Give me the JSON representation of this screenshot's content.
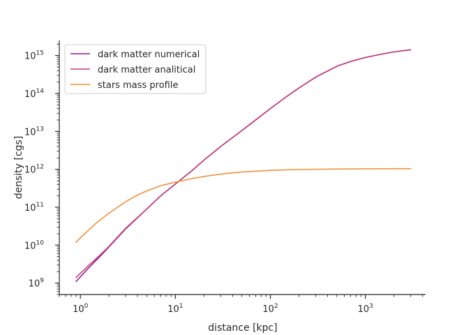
{
  "chart_data": {
    "type": "line",
    "xlabel": "distance [kpc]",
    "ylabel": "density [cgs]",
    "xscale": "log",
    "yscale": "log",
    "xlim": [
      0.6,
      4300
    ],
    "ylim": [
      500000000.0,
      2500000000000000.0
    ],
    "x_ticks": [
      {
        "value": 1,
        "label": "10",
        "exp": "0"
      },
      {
        "value": 10,
        "label": "10",
        "exp": "1"
      },
      {
        "value": 100,
        "label": "10",
        "exp": "2"
      },
      {
        "value": 1000,
        "label": "10",
        "exp": "3"
      }
    ],
    "y_ticks": [
      {
        "value": 1000000000.0,
        "label": "10",
        "exp": "9"
      },
      {
        "value": 10000000000.0,
        "label": "10",
        "exp": "10"
      },
      {
        "value": 100000000000.0,
        "label": "10",
        "exp": "11"
      },
      {
        "value": 1000000000000.0,
        "label": "10",
        "exp": "12"
      },
      {
        "value": 10000000000000.0,
        "label": "10",
        "exp": "13"
      },
      {
        "value": 100000000000000.0,
        "label": "10",
        "exp": "14"
      },
      {
        "value": 1000000000000000.0,
        "label": "10",
        "exp": "15"
      }
    ],
    "grid": false,
    "legend_position": "top-left",
    "series": [
      {
        "name": "dark matter numerical",
        "color": "#8e1a93",
        "x": [
          0.9,
          1.2,
          1.6,
          2,
          3,
          5,
          7,
          10,
          15,
          20,
          30,
          50,
          70,
          100,
          150,
          200,
          300,
          500,
          700,
          1000,
          1500,
          2000,
          3000
        ],
        "y": [
          1100000000.0,
          2400000000.0,
          5000000000.0,
          9000000000.0,
          27000000000.0,
          90000000000.0,
          200000000000.0,
          410000000000.0,
          930000000000.0,
          1750000000000.0,
          4000000000000.0,
          10500000000000.0,
          20000000000000.0,
          40000000000000.0,
          85000000000000.0,
          140000000000000.0,
          270000000000000.0,
          520000000000000.0,
          700000000000000.0,
          890000000000000.0,
          1100000000000000.0,
          1250000000000000.0,
          1420000000000000.0
        ]
      },
      {
        "name": "dark matter analitical",
        "color": "#c23b79",
        "x": [
          0.9,
          1.2,
          1.6,
          2,
          3,
          5,
          7,
          10,
          15,
          20,
          30,
          50,
          70,
          100,
          150,
          200,
          300,
          500,
          700,
          1000,
          1500,
          2000,
          3000
        ],
        "y": [
          1400000000.0,
          2800000000.0,
          5400000000.0,
          9300000000.0,
          28000000000.0,
          90000000000.0,
          200000000000.0,
          410000000000.0,
          930000000000.0,
          1750000000000.0,
          4000000000000.0,
          10500000000000.0,
          20000000000000.0,
          40000000000000.0,
          85000000000000.0,
          140000000000000.0,
          270000000000000.0,
          520000000000000.0,
          700000000000000.0,
          890000000000000.0,
          1100000000000000.0,
          1250000000000000.0,
          1420000000000000.0
        ]
      },
      {
        "name": "stars mass profile",
        "color": "#f0913a",
        "x": [
          0.9,
          1.2,
          1.5,
          2,
          3,
          4,
          5,
          7,
          10,
          15,
          20,
          30,
          50,
          100,
          200,
          500,
          1000,
          3000
        ],
        "y": [
          12000000000.0,
          24000000000.0,
          40000000000.0,
          70000000000.0,
          140000000000.0,
          210000000000.0,
          270000000000.0,
          370000000000.0,
          460000000000.0,
          570000000000.0,
          650000000000.0,
          750000000000.0,
          850000000000.0,
          940000000000.0,
          990000000000.0,
          1020000000000.0,
          1030000000000.0,
          1040000000000.0
        ]
      }
    ]
  }
}
